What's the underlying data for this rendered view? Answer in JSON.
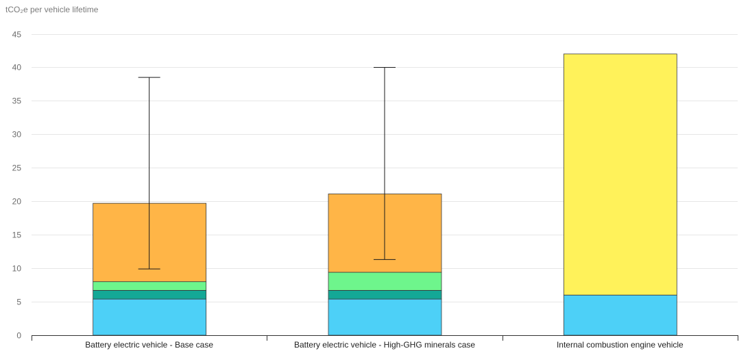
{
  "chart_data": {
    "type": "bar",
    "stacked": true,
    "ylabel": "tCO₂e per vehicle lifetime",
    "ylim": [
      0,
      45
    ],
    "yticks": [
      0,
      5,
      10,
      15,
      20,
      25,
      30,
      35,
      40,
      45
    ],
    "grid": true,
    "categories": [
      "Battery electric vehicle - Base case",
      "Battery electric vehicle - High-GHG minerals case",
      "Internal combustion engine vehicle"
    ],
    "series": [
      {
        "color": "#4dd0f7",
        "values": [
          5.4,
          5.4,
          6.0
        ]
      },
      {
        "color": "#14a896",
        "values": [
          1.3,
          1.3,
          0
        ]
      },
      {
        "color": "#6ef58c",
        "values": [
          1.3,
          2.7,
          0
        ]
      },
      {
        "color": "#ffb547",
        "values": [
          11.7,
          11.7,
          0
        ]
      },
      {
        "color": "#fff25a",
        "values": [
          0,
          0,
          36.0
        ]
      }
    ],
    "error_bars": [
      {
        "low": 9.9,
        "high": 38.5
      },
      {
        "low": 11.3,
        "high": 40.0
      },
      null
    ]
  }
}
